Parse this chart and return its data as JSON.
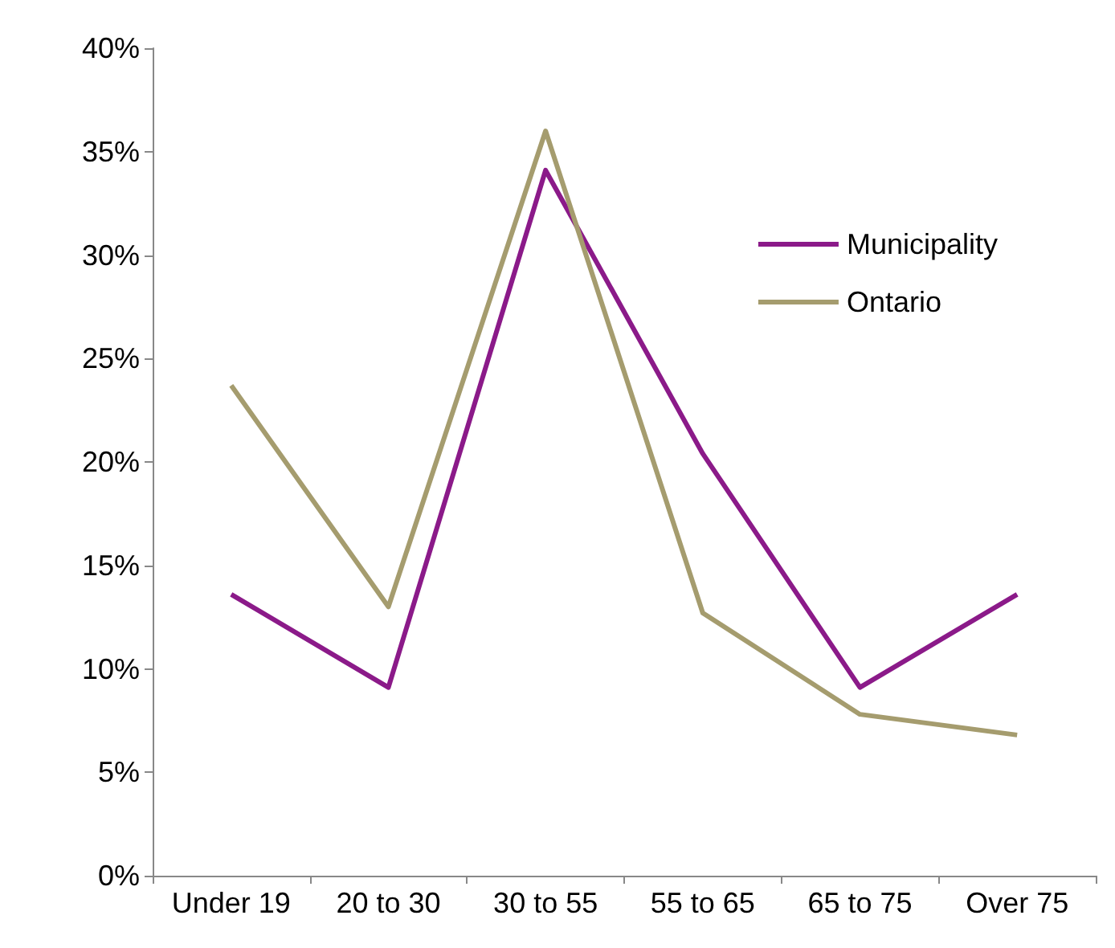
{
  "chart_data": {
    "type": "line",
    "categories": [
      "Under 19",
      "20 to 30",
      "30 to 55",
      "55 to 65",
      "65 to 75",
      "Over 75"
    ],
    "series": [
      {
        "name": "Municipality",
        "color": "#8b1a89",
        "values": [
          13.6,
          9.1,
          34.1,
          20.4,
          9.1,
          13.6
        ]
      },
      {
        "name": "Ontario",
        "color": "#a59c6e",
        "values": [
          23.7,
          13.0,
          36.0,
          12.7,
          7.8,
          6.8
        ]
      }
    ],
    "ylim": [
      0,
      40
    ],
    "yticks": [
      {
        "value": 0,
        "label": "0%"
      },
      {
        "value": 5,
        "label": "5%"
      },
      {
        "value": 10,
        "label": "10%"
      },
      {
        "value": 15,
        "label": "15%"
      },
      {
        "value": 20,
        "label": "20%"
      },
      {
        "value": 25,
        "label": "25%"
      },
      {
        "value": 30,
        "label": "30%"
      },
      {
        "value": 35,
        "label": "35%"
      },
      {
        "value": 40,
        "label": "40%"
      }
    ],
    "grid": false,
    "legend": "top right",
    "marker": "none",
    "line_style": "solid"
  }
}
